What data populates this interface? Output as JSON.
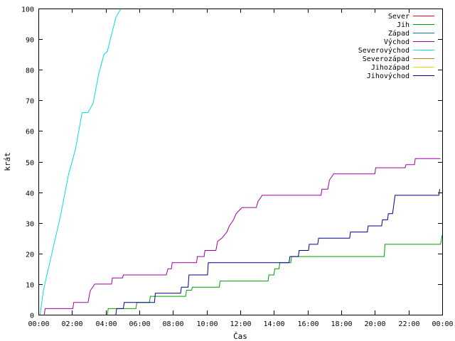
{
  "chart_data": {
    "type": "line",
    "title": "",
    "xlabel": "Čas",
    "ylabel": "krát",
    "xlim": [
      0,
      24
    ],
    "ylim": [
      0,
      100
    ],
    "x_ticks": [
      {
        "value": 0,
        "label": "00:00"
      },
      {
        "value": 2,
        "label": "02:00"
      },
      {
        "value": 4,
        "label": "04:00"
      },
      {
        "value": 6,
        "label": "06:00"
      },
      {
        "value": 8,
        "label": "08:00"
      },
      {
        "value": 10,
        "label": "10:00"
      },
      {
        "value": 12,
        "label": "12:00"
      },
      {
        "value": 14,
        "label": "14:00"
      },
      {
        "value": 16,
        "label": "16:00"
      },
      {
        "value": 18,
        "label": "18:00"
      },
      {
        "value": 20,
        "label": "20:00"
      },
      {
        "value": 22,
        "label": "22:00"
      },
      {
        "value": 24,
        "label": "00:00"
      }
    ],
    "y_ticks": [
      0,
      10,
      20,
      30,
      40,
      50,
      60,
      70,
      80,
      90,
      100
    ],
    "grid": false,
    "legend_position": "top-right",
    "series": [
      {
        "name": "Sever",
        "color": "#ff0000",
        "points": []
      },
      {
        "name": "Jih",
        "color": "#00a000",
        "points": [
          [
            4.1,
            0
          ],
          [
            4.15,
            2
          ],
          [
            5.8,
            2
          ],
          [
            5.85,
            4
          ],
          [
            6.6,
            4
          ],
          [
            6.65,
            6
          ],
          [
            8.75,
            6
          ],
          [
            8.8,
            8
          ],
          [
            9.1,
            8
          ],
          [
            9.15,
            9
          ],
          [
            10.75,
            9
          ],
          [
            10.8,
            11
          ],
          [
            13.65,
            11
          ],
          [
            13.7,
            13
          ],
          [
            14.0,
            13
          ],
          [
            14.05,
            15
          ],
          [
            14.3,
            15
          ],
          [
            14.35,
            17
          ],
          [
            15.0,
            17
          ],
          [
            15.05,
            19
          ],
          [
            20.55,
            19
          ],
          [
            20.6,
            23
          ],
          [
            23.9,
            23
          ],
          [
            24.0,
            26
          ]
        ]
      },
      {
        "name": "Západ",
        "color": "#0080a0",
        "points": []
      },
      {
        "name": "Východ",
        "color": "#a000a0",
        "points": [
          [
            0.35,
            0
          ],
          [
            0.4,
            2
          ],
          [
            2.05,
            2
          ],
          [
            2.1,
            4
          ],
          [
            2.95,
            4
          ],
          [
            3.05,
            7
          ],
          [
            3.1,
            8
          ],
          [
            3.35,
            10
          ],
          [
            4.35,
            10
          ],
          [
            4.4,
            12
          ],
          [
            5.0,
            12
          ],
          [
            5.05,
            13
          ],
          [
            7.6,
            13
          ],
          [
            7.7,
            15
          ],
          [
            7.9,
            15
          ],
          [
            7.95,
            17
          ],
          [
            9.4,
            17
          ],
          [
            9.45,
            19
          ],
          [
            9.85,
            19
          ],
          [
            9.9,
            21
          ],
          [
            10.55,
            21
          ],
          [
            10.65,
            24
          ],
          [
            10.9,
            25
          ],
          [
            11.2,
            27
          ],
          [
            11.35,
            29
          ],
          [
            11.6,
            31
          ],
          [
            11.75,
            33
          ],
          [
            12.1,
            35
          ],
          [
            12.95,
            35
          ],
          [
            13.05,
            37
          ],
          [
            13.3,
            39
          ],
          [
            16.8,
            39
          ],
          [
            16.85,
            41
          ],
          [
            17.2,
            41
          ],
          [
            17.3,
            44
          ],
          [
            17.55,
            46
          ],
          [
            20.0,
            46
          ],
          [
            20.05,
            48
          ],
          [
            21.8,
            48
          ],
          [
            21.85,
            49
          ],
          [
            22.35,
            49
          ],
          [
            22.4,
            51
          ],
          [
            23.9,
            51
          ]
        ]
      },
      {
        "name": "Severovýchod",
        "color": "#00e0e0",
        "points": [
          [
            0.1,
            0
          ],
          [
            0.3,
            8
          ],
          [
            0.8,
            20
          ],
          [
            1.3,
            32
          ],
          [
            1.8,
            46
          ],
          [
            2.2,
            54
          ],
          [
            2.6,
            66
          ],
          [
            2.95,
            66
          ],
          [
            3.25,
            69
          ],
          [
            3.6,
            79
          ],
          [
            3.9,
            85
          ],
          [
            4.1,
            86
          ],
          [
            4.6,
            97
          ],
          [
            4.9,
            100
          ]
        ]
      },
      {
        "name": "Severozápad",
        "color": "#c08020",
        "points": []
      },
      {
        "name": "Jihozápad",
        "color": "#e0e000",
        "points": []
      },
      {
        "name": "Jihovýchod",
        "color": "#000090",
        "points": [
          [
            4.6,
            0
          ],
          [
            4.65,
            2
          ],
          [
            5.05,
            2
          ],
          [
            5.1,
            4
          ],
          [
            6.9,
            4
          ],
          [
            6.95,
            7
          ],
          [
            8.45,
            7
          ],
          [
            8.5,
            9
          ],
          [
            8.9,
            9
          ],
          [
            8.95,
            13
          ],
          [
            10.05,
            13
          ],
          [
            10.1,
            17
          ],
          [
            14.9,
            17
          ],
          [
            14.95,
            19
          ],
          [
            15.45,
            19
          ],
          [
            15.5,
            21
          ],
          [
            16.05,
            21
          ],
          [
            16.1,
            23
          ],
          [
            16.6,
            23
          ],
          [
            16.65,
            25
          ],
          [
            18.5,
            25
          ],
          [
            18.55,
            27
          ],
          [
            19.55,
            27
          ],
          [
            19.6,
            29
          ],
          [
            20.4,
            29
          ],
          [
            20.45,
            31
          ],
          [
            20.75,
            31
          ],
          [
            20.8,
            33
          ],
          [
            21.05,
            33
          ],
          [
            21.2,
            39
          ],
          [
            23.8,
            39
          ],
          [
            23.85,
            41
          ]
        ]
      }
    ]
  }
}
